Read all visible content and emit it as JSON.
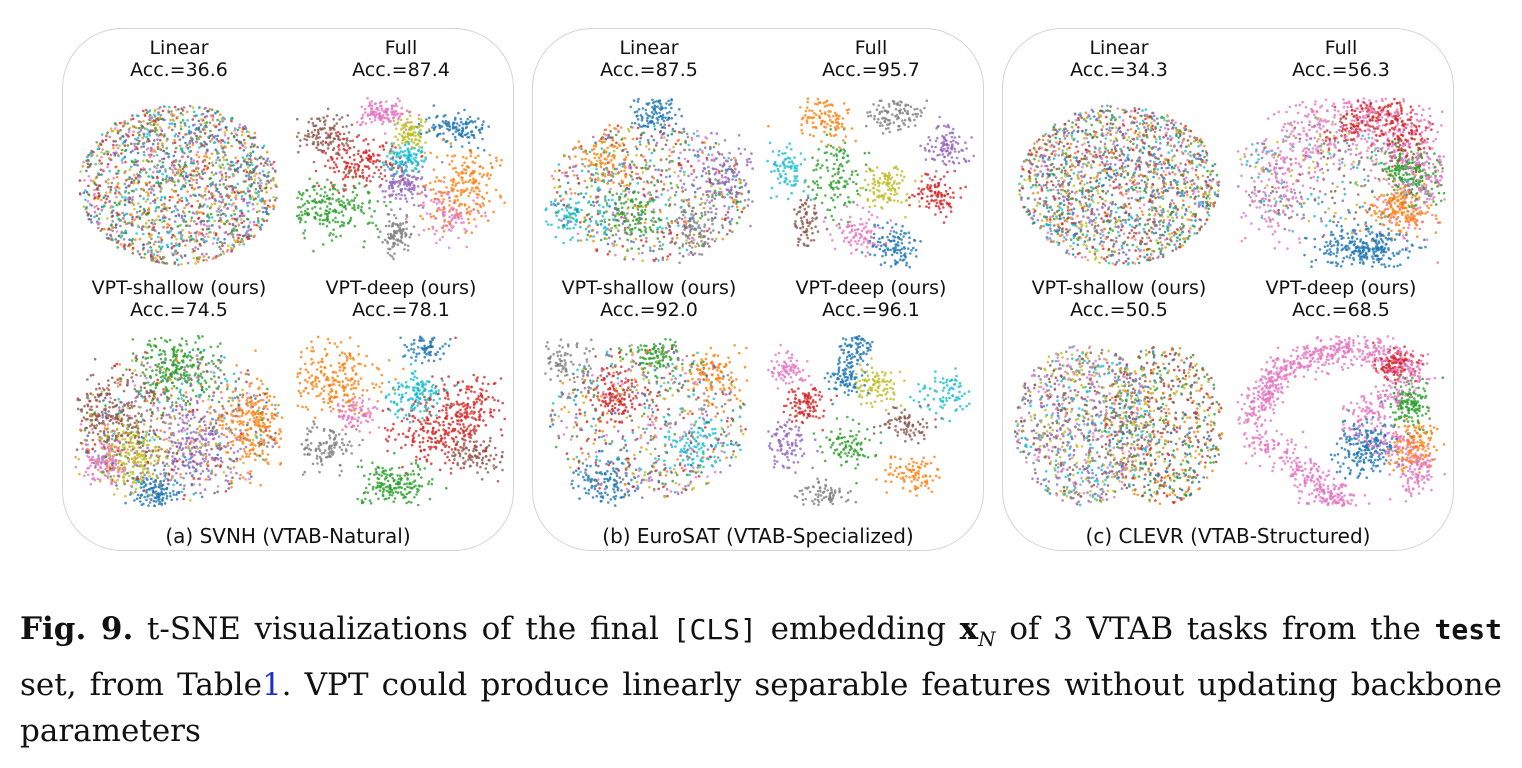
{
  "palette": [
    "#1f77b4",
    "#ff7f0e",
    "#2ca02c",
    "#d62728",
    "#9467bd",
    "#8c564b",
    "#e377c2",
    "#7f7f7f",
    "#bcbd22",
    "#17becf"
  ],
  "panels": [
    {
      "caption": "(a) SVNH (VTAB-Natural)",
      "plots": [
        {
          "title": "Linear",
          "acc": "Acc.=36.6"
        },
        {
          "title": "Full",
          "acc": "Acc.=87.4"
        },
        {
          "title": "VPT-shallow (ours)",
          "acc": "Acc.=74.5"
        },
        {
          "title": "VPT-deep (ours)",
          "acc": "Acc.=78.1"
        }
      ]
    },
    {
      "caption": "(b) EuroSAT (VTAB-Specialized)",
      "plots": [
        {
          "title": "Linear",
          "acc": "Acc.=87.5"
        },
        {
          "title": "Full",
          "acc": "Acc.=95.7"
        },
        {
          "title": "VPT-shallow (ours)",
          "acc": "Acc.=92.0"
        },
        {
          "title": "VPT-deep (ours)",
          "acc": "Acc.=96.1"
        }
      ]
    },
    {
      "caption": "(c) CLEVR (VTAB-Structured)",
      "plots": [
        {
          "title": "Linear",
          "acc": "Acc.=34.3"
        },
        {
          "title": "Full",
          "acc": "Acc.=56.3"
        },
        {
          "title": "VPT-shallow (ours)",
          "acc": "Acc.=50.5"
        },
        {
          "title": "VPT-deep (ours)",
          "acc": "Acc.=68.5"
        }
      ]
    }
  ],
  "caption": {
    "label": "Fig. 9.",
    "t1": " t-SNE visualizations of the final ",
    "cls": "[CLS]",
    "t2": " embedding ",
    "var": "x",
    "var_sub": "N",
    "t3": " of 3 VTAB tasks from the ",
    "test": "test",
    "t4": " set, from Table",
    "ref": "1",
    "t5": ". VPT could produce linearly separable features without updating backbone parameters"
  }
}
